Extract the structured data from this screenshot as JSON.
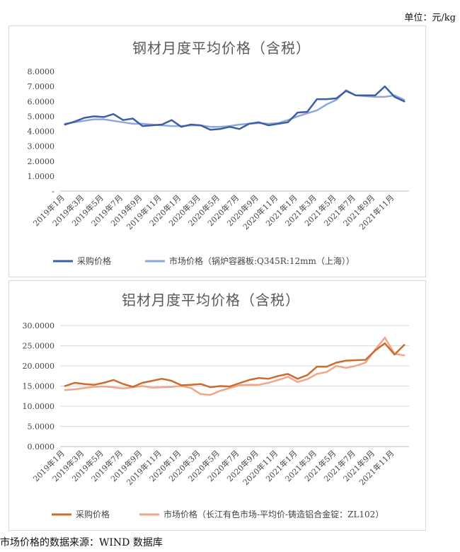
{
  "unit_note": "单位：元/kg",
  "source_note": "市场价格的数据来源：WIND 数据库",
  "colors": {
    "steel_purchase": "#3c5fa3",
    "steel_market": "#8fa7d9",
    "al_purchase": "#cd6b2e",
    "al_market": "#f0a688",
    "grid": "#d9d9d9"
  },
  "chart_data": [
    {
      "type": "line",
      "title": "钢材月度平均价格（含税）",
      "xlabel": "",
      "ylabel": "",
      "ylim": [
        0,
        8
      ],
      "yticks": [
        8,
        7,
        6,
        5,
        4,
        3,
        2,
        1,
        0
      ],
      "ytick_labels": [
        "8.0000",
        "7.0000",
        "6.0000",
        "5.0000",
        "4.0000",
        "3.0000",
        "2.0000",
        "1.0000",
        "-"
      ],
      "grid": false,
      "legend": "bottom",
      "x_tick_labels": [
        "2019年1月",
        "2019年3月",
        "2019年5月",
        "2019年7月",
        "2019年9月",
        "2019年11月",
        "2020年1月",
        "2020年3月",
        "2020年5月",
        "2020年7月",
        "2020年9月",
        "2020年11月",
        "2021年1月",
        "2021年3月",
        "2021年5月",
        "2021年7月",
        "2021年9月",
        "2021年11月"
      ],
      "categories": [
        "2019年1月",
        "2019年2月",
        "2019年3月",
        "2019年4月",
        "2019年5月",
        "2019年6月",
        "2019年7月",
        "2019年8月",
        "2019年9月",
        "2019年10月",
        "2019年11月",
        "2019年12月",
        "2020年1月",
        "2020年2月",
        "2020年3月",
        "2020年4月",
        "2020年5月",
        "2020年6月",
        "2020年7月",
        "2020年8月",
        "2020年9月",
        "2020年10月",
        "2020年11月",
        "2020年12月",
        "2021年1月",
        "2021年2月",
        "2021年3月",
        "2021年4月",
        "2021年5月",
        "2021年6月",
        "2021年7月",
        "2021年8月",
        "2021年9月",
        "2021年10月",
        "2021年11月",
        "2021年12月"
      ],
      "series": [
        {
          "name": "采购价格",
          "values": [
            4.45,
            4.65,
            4.9,
            5.0,
            4.95,
            5.15,
            4.75,
            4.85,
            4.35,
            4.4,
            4.45,
            4.75,
            4.3,
            4.45,
            4.4,
            4.1,
            4.15,
            4.3,
            4.15,
            4.5,
            4.6,
            4.4,
            4.5,
            4.6,
            5.25,
            5.3,
            6.15,
            6.15,
            6.2,
            6.7,
            6.4,
            6.4,
            6.4,
            7.0,
            6.3,
            6.0
          ]
        },
        {
          "name": "市场价格（锅炉容器板:Q345R:12mm（上海））",
          "values": [
            4.5,
            4.6,
            4.7,
            4.8,
            4.8,
            4.7,
            4.6,
            4.5,
            4.5,
            4.45,
            4.4,
            4.35,
            4.35,
            4.4,
            4.4,
            4.3,
            4.3,
            4.35,
            4.45,
            4.5,
            4.55,
            4.5,
            4.55,
            4.75,
            5.0,
            5.2,
            5.4,
            5.8,
            6.1,
            6.75,
            6.4,
            6.35,
            6.3,
            6.3,
            6.4,
            6.1
          ]
        }
      ]
    },
    {
      "type": "line",
      "title": "铝材月度平均价格（含税）",
      "xlabel": "",
      "ylabel": "",
      "ylim": [
        0,
        30
      ],
      "yticks": [
        30,
        25,
        20,
        15,
        10,
        5,
        0
      ],
      "ytick_labels": [
        "30.0000",
        "25.0000",
        "20.0000",
        "15.0000",
        "10.0000",
        "5.0000",
        "0.0000"
      ],
      "grid": true,
      "legend": "bottom",
      "x_tick_labels": [
        "2019年1月",
        "2019年3月",
        "2019年5月",
        "2019年7月",
        "2019年9月",
        "2019年11月",
        "2020年1月",
        "2020年3月",
        "2020年5月",
        "2020年7月",
        "2020年9月",
        "2020年11月",
        "2021年1月",
        "2021年3月",
        "2021年5月",
        "2021年7月",
        "2021年9月",
        "2021年11月"
      ],
      "categories": [
        "2019年1月",
        "2019年2月",
        "2019年3月",
        "2019年4月",
        "2019年5月",
        "2019年6月",
        "2019年7月",
        "2019年8月",
        "2019年9月",
        "2019年10月",
        "2019年11月",
        "2019年12月",
        "2020年1月",
        "2020年2月",
        "2020年3月",
        "2020年4月",
        "2020年5月",
        "2020年6月",
        "2020年7月",
        "2020年8月",
        "2020年9月",
        "2020年10月",
        "2020年11月",
        "2020年12月",
        "2021年1月",
        "2021年2月",
        "2021年3月",
        "2021年4月",
        "2021年5月",
        "2021年6月",
        "2021年7月",
        "2021年8月",
        "2021年9月",
        "2021年10月",
        "2021年11月",
        "2021年12月"
      ],
      "series": [
        {
          "name": "采购价格",
          "values": [
            15.0,
            15.8,
            15.5,
            15.3,
            15.8,
            16.5,
            15.5,
            14.8,
            15.8,
            16.3,
            16.8,
            16.3,
            15.2,
            15.3,
            15.5,
            14.7,
            15.0,
            14.9,
            15.7,
            16.5,
            17.0,
            16.8,
            17.5,
            18.0,
            16.8,
            17.7,
            19.8,
            19.8,
            20.8,
            21.3,
            21.4,
            21.5,
            23.8,
            25.6,
            22.8,
            25.2
          ]
        },
        {
          "name": "市场价格（长江有色市场-平均价-铸造铝合金锭：ZL102）",
          "values": [
            14.0,
            14.2,
            14.5,
            14.8,
            14.9,
            14.7,
            14.4,
            14.7,
            15.0,
            14.6,
            14.7,
            14.8,
            15.0,
            14.5,
            13.0,
            12.8,
            13.8,
            14.5,
            15.2,
            15.3,
            15.3,
            15.8,
            16.5,
            17.3,
            16.0,
            16.7,
            18.0,
            18.5,
            20.0,
            19.5,
            20.0,
            20.8,
            24.0,
            27.0,
            23.0,
            22.6
          ]
        }
      ]
    }
  ]
}
